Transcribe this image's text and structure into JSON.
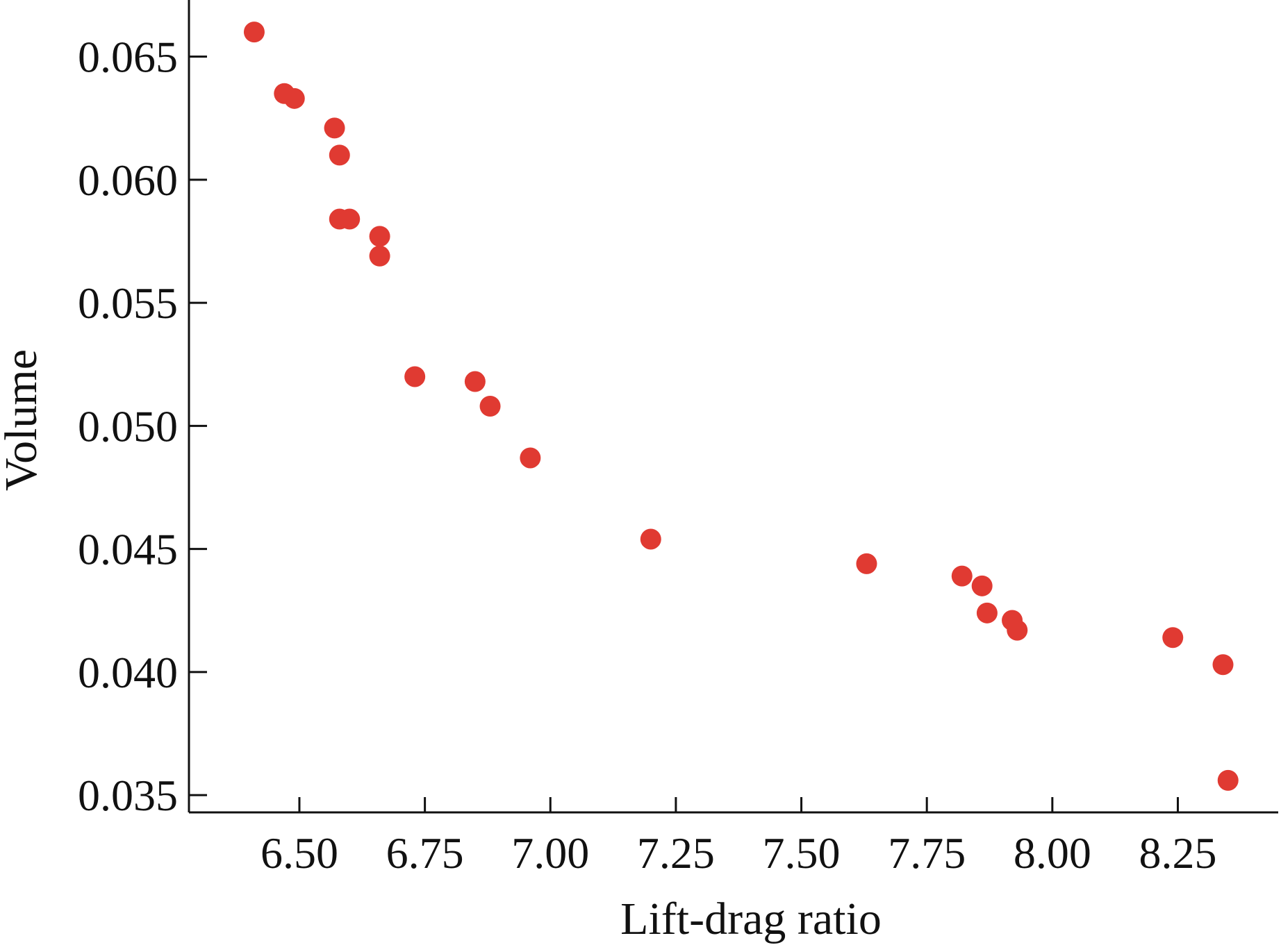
{
  "chart_data": {
    "type": "scatter",
    "xlabel": "Lift-drag ratio",
    "ylabel": "Volume",
    "xlim": [
      6.28,
      8.45
    ],
    "ylim": [
      0.0343,
      0.0673
    ],
    "xticks": [
      6.5,
      6.75,
      7.0,
      7.25,
      7.5,
      7.75,
      8.0,
      8.25
    ],
    "xtick_labels": [
      "6.50",
      "6.75",
      "7.00",
      "7.25",
      "7.50",
      "7.75",
      "8.00",
      "8.25"
    ],
    "yticks": [
      0.035,
      0.04,
      0.045,
      0.05,
      0.055,
      0.06,
      0.065
    ],
    "ytick_labels": [
      "0.035",
      "0.040",
      "0.045",
      "0.050",
      "0.055",
      "0.060",
      "0.065"
    ],
    "grid": false,
    "colors": {
      "marker": "#e03a32",
      "axis": "#111111"
    },
    "series": [
      {
        "points": [
          {
            "x": 6.41,
            "y": 0.066
          },
          {
            "x": 6.47,
            "y": 0.0635
          },
          {
            "x": 6.49,
            "y": 0.0633
          },
          {
            "x": 6.57,
            "y": 0.0621
          },
          {
            "x": 6.58,
            "y": 0.061
          },
          {
            "x": 6.58,
            "y": 0.0584
          },
          {
            "x": 6.6,
            "y": 0.0584
          },
          {
            "x": 6.66,
            "y": 0.0577
          },
          {
            "x": 6.66,
            "y": 0.0569
          },
          {
            "x": 6.73,
            "y": 0.052
          },
          {
            "x": 6.85,
            "y": 0.0518
          },
          {
            "x": 6.88,
            "y": 0.0508
          },
          {
            "x": 6.96,
            "y": 0.0487
          },
          {
            "x": 7.2,
            "y": 0.0454
          },
          {
            "x": 7.63,
            "y": 0.0444
          },
          {
            "x": 7.82,
            "y": 0.0439
          },
          {
            "x": 7.86,
            "y": 0.0435
          },
          {
            "x": 7.87,
            "y": 0.0424
          },
          {
            "x": 7.92,
            "y": 0.0421
          },
          {
            "x": 7.93,
            "y": 0.0417
          },
          {
            "x": 8.24,
            "y": 0.0414
          },
          {
            "x": 8.34,
            "y": 0.0403
          },
          {
            "x": 8.35,
            "y": 0.0356
          }
        ]
      }
    ]
  }
}
